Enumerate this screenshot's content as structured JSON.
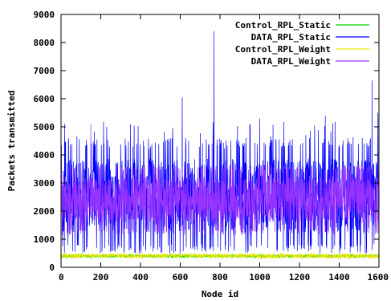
{
  "chart_data": {
    "type": "line",
    "title": "",
    "xlabel": "Node id",
    "ylabel": "Packets transmitted",
    "xlim": [
      0,
      1600
    ],
    "ylim": [
      0,
      9000
    ],
    "xticks": [
      0,
      200,
      400,
      600,
      800,
      1000,
      1200,
      1400,
      1600
    ],
    "yticks": [
      0,
      1000,
      2000,
      3000,
      4000,
      5000,
      6000,
      7000,
      8000,
      9000
    ],
    "xtick_labels": [
      "0",
      "200",
      "400",
      "600",
      "800",
      "1000",
      "1200",
      "1400",
      "1600"
    ],
    "ytick_labels": [
      "0",
      "1000",
      "2000",
      "3000",
      "4000",
      "5000",
      "6000",
      "7000",
      "8000",
      "9000"
    ],
    "grid": false,
    "legend_position": "top-right",
    "series": [
      {
        "name": "Control_RPL_Static",
        "color": "#00cc00",
        "typical_range": [
          350,
          450
        ],
        "peaks": []
      },
      {
        "name": "DATA_RPL_Static",
        "color": "#0000ff",
        "typical_range": [
          900,
          4200
        ],
        "peaks": [
          {
            "x": 0,
            "y": 5600
          },
          {
            "x": 230,
            "y": 5000
          },
          {
            "x": 610,
            "y": 6050
          },
          {
            "x": 770,
            "y": 8400
          },
          {
            "x": 1000,
            "y": 5300
          },
          {
            "x": 1330,
            "y": 5400
          },
          {
            "x": 1565,
            "y": 6650
          },
          {
            "x": 1595,
            "y": 5500
          }
        ]
      },
      {
        "name": "Control_RPL_Weight",
        "color": "#e6e600",
        "typical_range": [
          330,
          480
        ],
        "peaks": []
      },
      {
        "name": "DATA_RPL_Weight",
        "color": "#9933ff",
        "typical_range": [
          1400,
          3400
        ],
        "peaks": [
          {
            "x": 150,
            "y": 5100
          },
          {
            "x": 760,
            "y": 4400
          }
        ]
      }
    ]
  }
}
